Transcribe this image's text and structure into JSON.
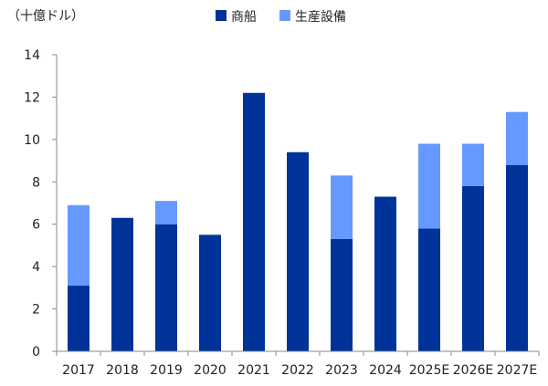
{
  "chart_data": {
    "type": "bar",
    "stacked": true,
    "unit_label": "（十億ドル）",
    "categories": [
      "2017",
      "2018",
      "2019",
      "2020",
      "2021",
      "2022",
      "2023",
      "2024",
      "2025E",
      "2026E",
      "2027E"
    ],
    "series": [
      {
        "name": "商船",
        "color": "#003399",
        "values": [
          3.1,
          6.3,
          6.0,
          5.5,
          12.2,
          9.4,
          5.3,
          7.3,
          5.8,
          7.8,
          8.8
        ]
      },
      {
        "name": "生産設備",
        "color": "#6699ff",
        "values": [
          3.8,
          0.0,
          1.1,
          0.0,
          0.0,
          0.0,
          3.0,
          0.0,
          4.0,
          2.0,
          2.5
        ]
      }
    ],
    "ylim": [
      0,
      14
    ],
    "yticks": [
      0,
      2,
      4,
      6,
      8,
      10,
      12,
      14
    ],
    "legend_position": "top",
    "grid": false
  }
}
